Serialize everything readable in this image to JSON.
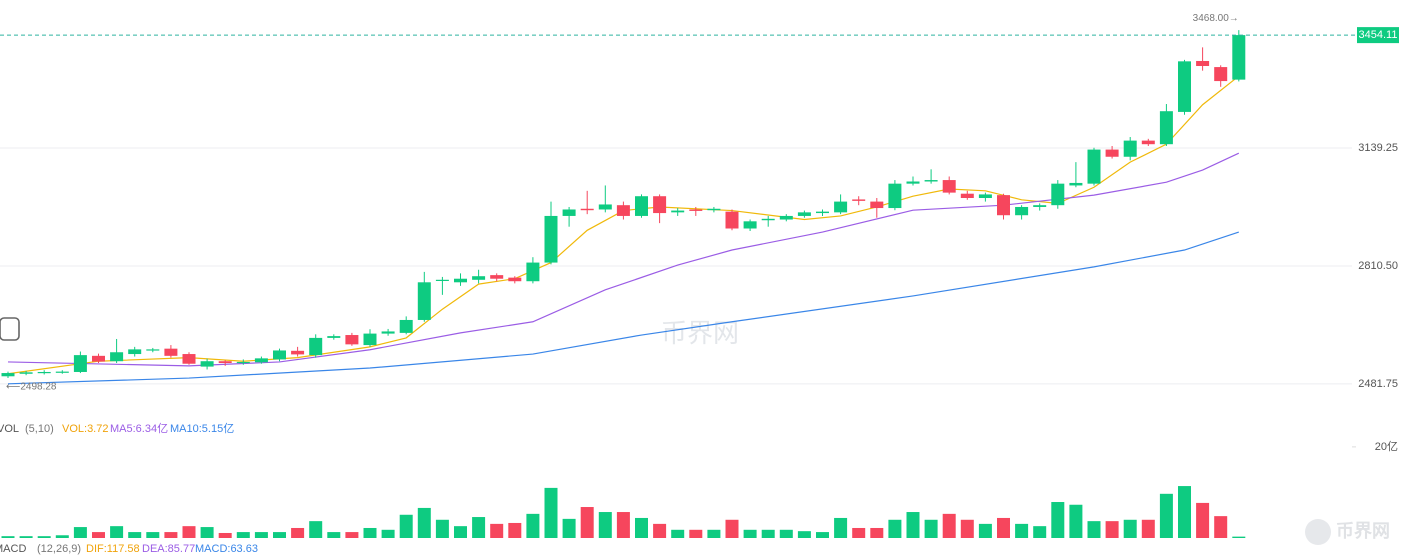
{
  "chart_data": {
    "type": "candlestick",
    "up_color": "#0ecb81",
    "down_color": "#f6465d",
    "open": [
      2503,
      2510,
      2512,
      2513,
      2515,
      2560,
      2545,
      2565,
      2575,
      2580,
      2565,
      2530,
      2545,
      2540,
      2542,
      2550,
      2574,
      2562,
      2610,
      2618,
      2590,
      2622,
      2624,
      2660,
      2770,
      2765,
      2772,
      2785,
      2778,
      2768,
      2820,
      2950,
      2970,
      2968,
      2980,
      2950,
      3005,
      2960,
      2968,
      2966,
      2962,
      2915,
      2938,
      2940,
      2950,
      2958,
      2960,
      2996,
      2990,
      2972,
      3040,
      3046,
      3050,
      3012,
      3000,
      3008,
      2952,
      2975,
      2980,
      3035,
      3040,
      3135,
      3115,
      3160,
      3150,
      3240,
      3382,
      3365,
      3330
    ],
    "close": [
      2512,
      2514,
      2515,
      2516,
      2562,
      2544,
      2570,
      2578,
      2578,
      2560,
      2538,
      2545,
      2540,
      2543,
      2553,
      2575,
      2564,
      2610,
      2615,
      2592,
      2622,
      2628,
      2660,
      2765,
      2772,
      2775,
      2782,
      2775,
      2768,
      2820,
      2950,
      2968,
      2966,
      2982,
      2950,
      3005,
      2958,
      2965,
      2964,
      2970,
      2915,
      2935,
      2942,
      2950,
      2960,
      2962,
      2990,
      2992,
      2972,
      3040,
      3046,
      3050,
      3015,
      3000,
      3010,
      2952,
      2975,
      2980,
      3040,
      3042,
      3135,
      3115,
      3160,
      3150,
      3242,
      3381,
      3368,
      3326,
      3454.11
    ],
    "high": [
      2516,
      2518,
      2520,
      2520,
      2572,
      2566,
      2607,
      2585,
      2582,
      2590,
      2570,
      2552,
      2548,
      2550,
      2558,
      2580,
      2585,
      2620,
      2620,
      2624,
      2634,
      2635,
      2670,
      2794,
      2780,
      2790,
      2800,
      2790,
      2782,
      2835,
      2990,
      2975,
      3020,
      3035,
      2990,
      3010,
      3010,
      2972,
      2975,
      2975,
      2968,
      2940,
      2950,
      2955,
      2965,
      2968,
      3010,
      3005,
      3000,
      3050,
      3060,
      3080,
      3060,
      3020,
      3015,
      3012,
      2980,
      2985,
      3050,
      3100,
      3140,
      3145,
      3170,
      3165,
      3262,
      3385,
      3420,
      3370,
      3468
    ],
    "low": [
      2498.28,
      2506,
      2508,
      2510,
      2512,
      2540,
      2540,
      2558,
      2570,
      2555,
      2535,
      2522,
      2532,
      2535,
      2538,
      2545,
      2558,
      2555,
      2605,
      2588,
      2585,
      2616,
      2620,
      2655,
      2730,
      2755,
      2762,
      2768,
      2762,
      2762,
      2815,
      2920,
      2955,
      2960,
      2940,
      2945,
      2930,
      2950,
      2950,
      2960,
      2910,
      2908,
      2920,
      2935,
      2945,
      2950,
      2955,
      2980,
      2945,
      2966,
      3035,
      3040,
      3010,
      2995,
      2990,
      2940,
      2940,
      2965,
      2970,
      3030,
      3035,
      3110,
      3105,
      3145,
      3145,
      3232,
      3355,
      3310,
      3325
    ],
    "ylim": [
      2409,
      3552
    ],
    "yticks": [
      {
        "value": 2481.75,
        "label": "2481.75"
      },
      {
        "value": 2810.5,
        "label": "2810.50"
      },
      3139.25
    ],
    "grid": true,
    "annotations": [
      "3468.00→",
      "⟵2498.28"
    ],
    "lines": [
      {
        "color": "#f0b90b",
        "x": [
          0,
          5,
          10,
          13,
          16,
          20,
          22,
          24,
          26,
          28,
          30,
          32,
          34,
          36,
          40,
          44,
          46,
          48,
          50,
          52,
          54,
          56,
          58,
          60,
          62,
          64,
          66,
          68
        ],
        "values": [
          2510,
          2545,
          2555,
          2545,
          2555,
          2585,
          2610,
          2690,
          2760,
          2775,
          2820,
          2910,
          2965,
          2975,
          2965,
          2940,
          2950,
          2975,
          3005,
          3025,
          3020,
          2995,
          2985,
          3030,
          3100,
          3150,
          3260,
          3340
        ]
      },
      {
        "color": "#9b5de5",
        "x": [
          0,
          10,
          15,
          20,
          25,
          29,
          33,
          37,
          40,
          45,
          50,
          55,
          60,
          64,
          66,
          68
        ],
        "values": [
          2543,
          2532,
          2543,
          2577,
          2624,
          2655,
          2744,
          2813,
          2855,
          2905,
          2966,
          2980,
          3008,
          3044,
          3078,
          3125
        ]
      },
      {
        "color": "#3a86e8",
        "x": [
          0,
          10,
          20,
          29,
          35,
          40,
          50,
          60,
          65,
          68
        ],
        "values": [
          2482,
          2498,
          2526,
          2565,
          2618,
          2655,
          2727,
          2808,
          2855,
          2905
        ]
      }
    ],
    "volume": {
      "values": [
        0.4,
        0.4,
        0.4,
        0.6,
        2.4,
        1.3,
        2.6,
        1.3,
        1.3,
        1.3,
        2.6,
        2.4,
        1.1,
        1.3,
        1.3,
        1.3,
        2.2,
        3.7,
        1.3,
        1.3,
        2.2,
        1.8,
        5.1,
        6.6,
        4,
        2.6,
        4.6,
        3.1,
        3.3,
        5.3,
        11,
        4.2,
        6.8,
        5.7,
        5.7,
        4.4,
        3.1,
        1.8,
        1.8,
        1.8,
        4,
        1.8,
        1.8,
        1.8,
        1.5,
        1.3,
        4.4,
        2.2,
        2.2,
        4,
        5.7,
        4,
        5.3,
        4,
        3.1,
        4.4,
        3.1,
        2.6,
        7.9,
        7.3,
        3.7,
        3.7,
        4,
        4,
        9.7,
        11.4,
        7.7,
        4.8,
        0.3
      ],
      "ylim": [
        0,
        27
      ],
      "yticks": [
        {
          "value": 20,
          "label": "20亿"
        }
      ],
      "legend": [
        "VOL",
        "(5,10)",
        "VOL:3.72",
        "MA5:6.34亿",
        "MA10:5.15亿"
      ]
    },
    "macd_legend": [
      "MACD",
      "(12,26,9)",
      "DIF:117.58",
      "DEA:85.77",
      "MACD:63.63"
    ],
    "watermark": "币界网"
  }
}
